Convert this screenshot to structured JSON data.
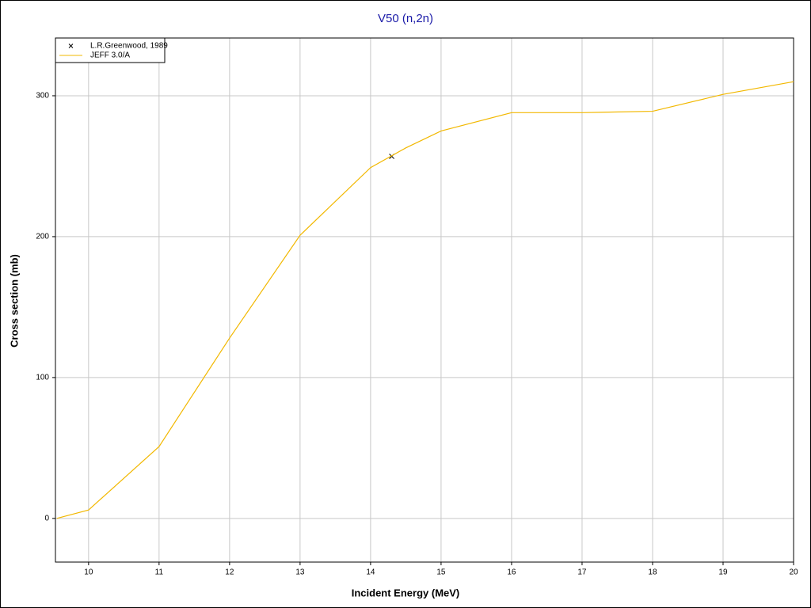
{
  "chart_data": {
    "type": "line",
    "title": "V50 (n,2n)",
    "xlabel": "Incident Energy (MeV)",
    "ylabel": "Cross section (mb)",
    "series": [
      {
        "name": "L.R.Greenwood, 1989",
        "color": "#000000",
        "marker": "x",
        "x": [
          14.3
        ],
        "values": [
          257
        ]
      },
      {
        "name": "JEFF 3.0/A",
        "color": "#f2b800",
        "x": [
          9.55,
          10,
          11,
          12,
          13,
          14,
          14.5,
          15,
          16,
          17,
          18,
          19,
          20
        ],
        "values": [
          0,
          6,
          51,
          128,
          201,
          249,
          263,
          275,
          288,
          288,
          289,
          301,
          310
        ]
      }
    ],
    "xlim": [
      9.53,
      20
    ],
    "xticks": [
      10,
      11,
      12,
      13,
      14,
      15,
      16,
      17,
      18,
      19,
      20
    ],
    "ylim": [
      -31,
      341
    ],
    "yticks": [
      0,
      100,
      200,
      300
    ],
    "grid": true,
    "legend": "upper left"
  }
}
